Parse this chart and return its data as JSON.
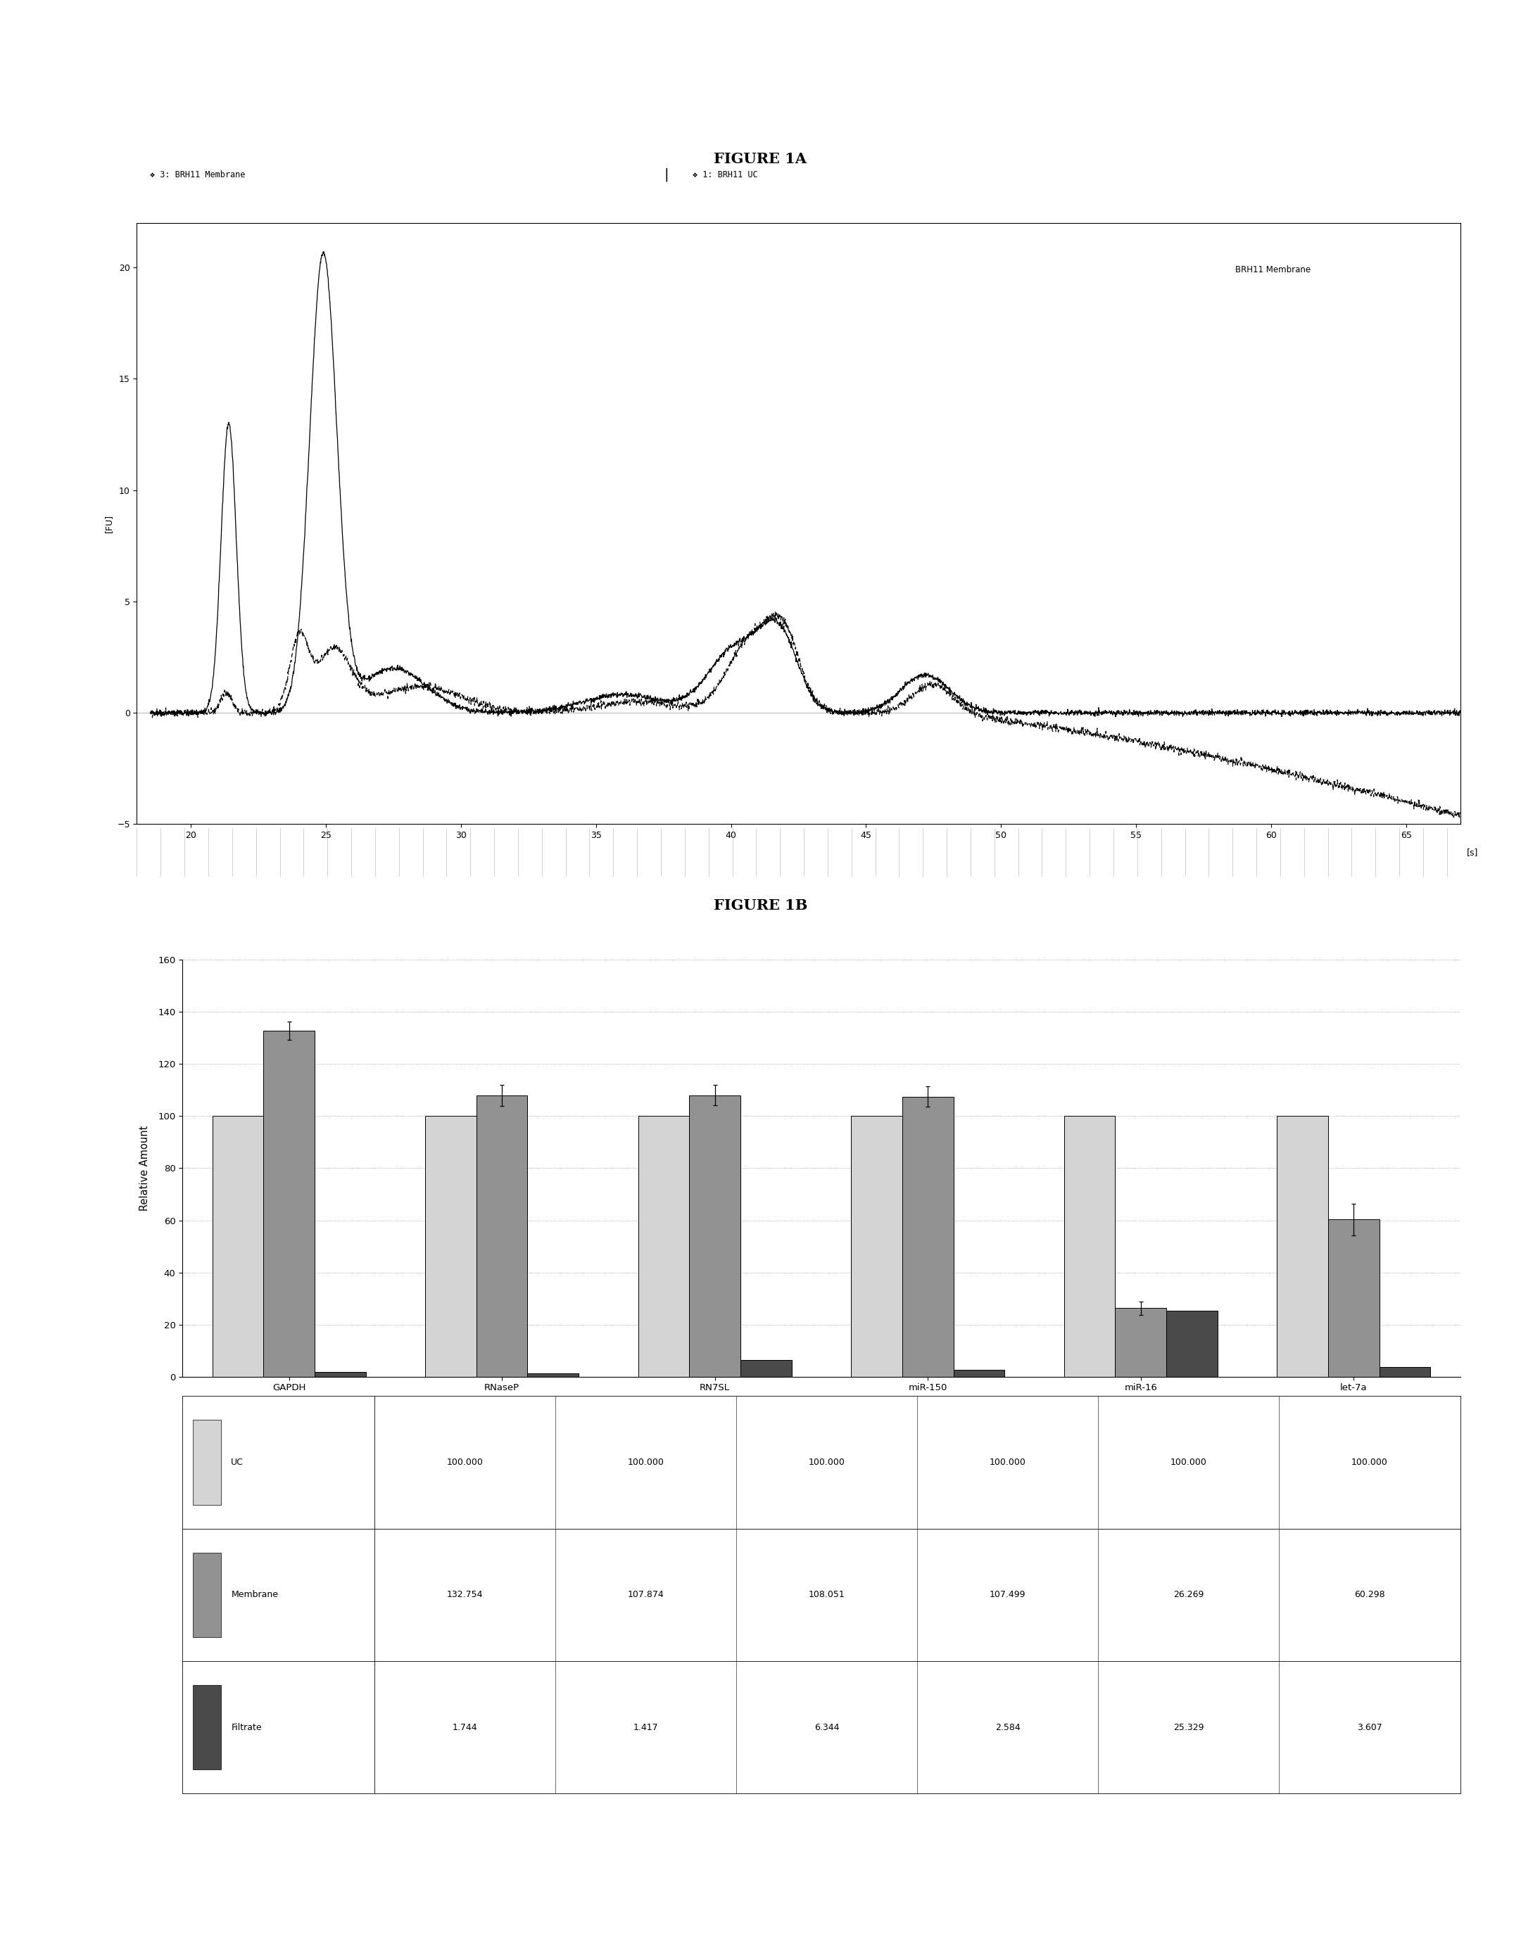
{
  "fig1a_title": "FIGURE 1A",
  "fig1b_title": "FIGURE 1B",
  "legend1_label1": "❖ 3: BRH11 Membrane",
  "legend1_label2": "❖ 1: BRH11 UC",
  "legend1_label3": "BRH11 Membrane",
  "xlabel_1a": "[s]",
  "ylabel_1a": "[FU]",
  "xlim_1a": [
    18,
    67
  ],
  "ylim_1a": [
    -5,
    22
  ],
  "xticks_1a": [
    20,
    25,
    30,
    35,
    40,
    45,
    50,
    55,
    60,
    65
  ],
  "yticks_1a": [
    -5,
    0,
    5,
    10,
    15,
    20
  ],
  "categories_1b": [
    "GAPDH",
    "RNaseP",
    "RN7SL",
    "miR-150",
    "miR-16",
    "let-7a"
  ],
  "uc_values": [
    100.0,
    100.0,
    100.0,
    100.0,
    100.0,
    100.0
  ],
  "membrane_values": [
    132.754,
    107.874,
    108.051,
    107.499,
    26.269,
    60.298
  ],
  "filtrate_values": [
    1.744,
    1.417,
    6.344,
    2.584,
    25.329,
    3.607
  ],
  "membrane_errors": [
    3.5,
    4.0,
    4.0,
    4.0,
    2.5,
    6.0
  ],
  "ylim_1b": [
    0,
    160
  ],
  "yticks_1b": [
    0,
    20,
    40,
    60,
    80,
    100,
    120,
    140,
    160
  ],
  "bar_color_uc": "#d4d4d4",
  "bar_color_membrane": "#929292",
  "bar_color_filtrate": "#4a4a4a",
  "bar_width": 0.24,
  "ylabel_1b": "Relative Amount",
  "table_labels": [
    "UC",
    "Membrane",
    "Filtrate"
  ],
  "table_uc": [
    "100.000",
    "100.000",
    "100.000",
    "100.000",
    "100.000",
    "100.000"
  ],
  "table_membrane": [
    "132.754",
    "107.874",
    "108.051",
    "107.499",
    "26.269",
    "60.298"
  ],
  "table_filtrate": [
    "1.744",
    "1.417",
    "6.344",
    "2.584",
    "25.329",
    "3.607"
  ]
}
